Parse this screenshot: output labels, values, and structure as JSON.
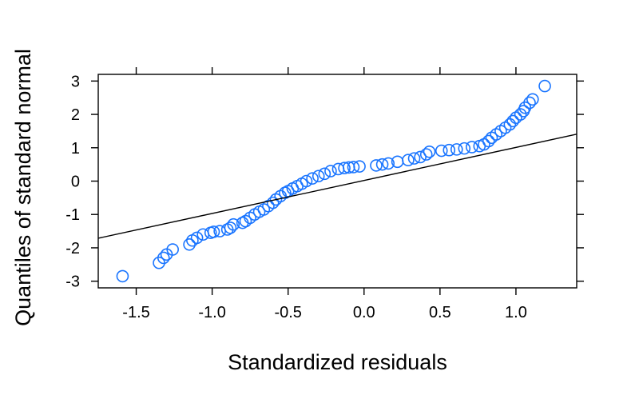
{
  "chart_data": {
    "type": "scatter",
    "title": "",
    "xlabel": "Standardized residuals",
    "ylabel": "Quantiles of standard normal",
    "xlim": [
      -1.75,
      1.4
    ],
    "ylim": [
      -3.2,
      3.2
    ],
    "xticks": [
      -1.5,
      -1.0,
      -0.5,
      0.0,
      0.5,
      1.0
    ],
    "xtick_labels": [
      "-1.5",
      "-1.0",
      "-0.5",
      "0.0",
      "0.5",
      "1.0"
    ],
    "yticks": [
      -3,
      -2,
      -1,
      0,
      1,
      2,
      3
    ],
    "ytick_labels": [
      "-3",
      "-2",
      "-1",
      "0",
      "1",
      "2",
      "3"
    ],
    "grid": false,
    "reference_line": {
      "intercept": 0.02,
      "slope": 0.99
    },
    "point_color": "#1a75ff",
    "line_color": "#000000",
    "series": [
      {
        "x": [
          -1.59,
          -1.35,
          -1.32,
          -1.3,
          -1.26,
          -1.15,
          -1.13,
          -1.1,
          -1.06,
          -1.01,
          -0.99,
          -0.95,
          -0.9,
          -0.88,
          -0.86,
          -0.8,
          -0.78,
          -0.75,
          -0.72,
          -0.69,
          -0.66,
          -0.63,
          -0.6,
          -0.58,
          -0.55,
          -0.52,
          -0.5,
          -0.47,
          -0.44,
          -0.41,
          -0.38,
          -0.34,
          -0.3,
          -0.26,
          -0.22,
          -0.17,
          -0.13,
          -0.1,
          -0.07,
          -0.03,
          0.08,
          0.12,
          0.16,
          0.22,
          0.29,
          0.33,
          0.37,
          0.41,
          0.43,
          0.51,
          0.56,
          0.61,
          0.66,
          0.71,
          0.76,
          0.79,
          0.82,
          0.84,
          0.87,
          0.9,
          0.93,
          0.96,
          0.98,
          1.0,
          1.03,
          1.05,
          1.06,
          1.09,
          1.11,
          1.19
        ],
        "y": [
          -2.85,
          -2.45,
          -2.3,
          -2.2,
          -2.05,
          -1.9,
          -1.78,
          -1.7,
          -1.6,
          -1.55,
          -1.52,
          -1.5,
          -1.45,
          -1.4,
          -1.3,
          -1.25,
          -1.2,
          -1.1,
          -1.0,
          -0.92,
          -0.85,
          -0.75,
          -0.65,
          -0.55,
          -0.45,
          -0.35,
          -0.3,
          -0.22,
          -0.15,
          -0.08,
          0.0,
          0.08,
          0.15,
          0.22,
          0.3,
          0.36,
          0.39,
          0.41,
          0.42,
          0.44,
          0.47,
          0.5,
          0.53,
          0.58,
          0.63,
          0.68,
          0.72,
          0.8,
          0.88,
          0.91,
          0.93,
          0.95,
          0.98,
          1.02,
          1.05,
          1.1,
          1.2,
          1.3,
          1.4,
          1.5,
          1.6,
          1.7,
          1.8,
          1.9,
          2.0,
          2.1,
          2.2,
          2.35,
          2.45,
          2.85
        ]
      }
    ]
  }
}
